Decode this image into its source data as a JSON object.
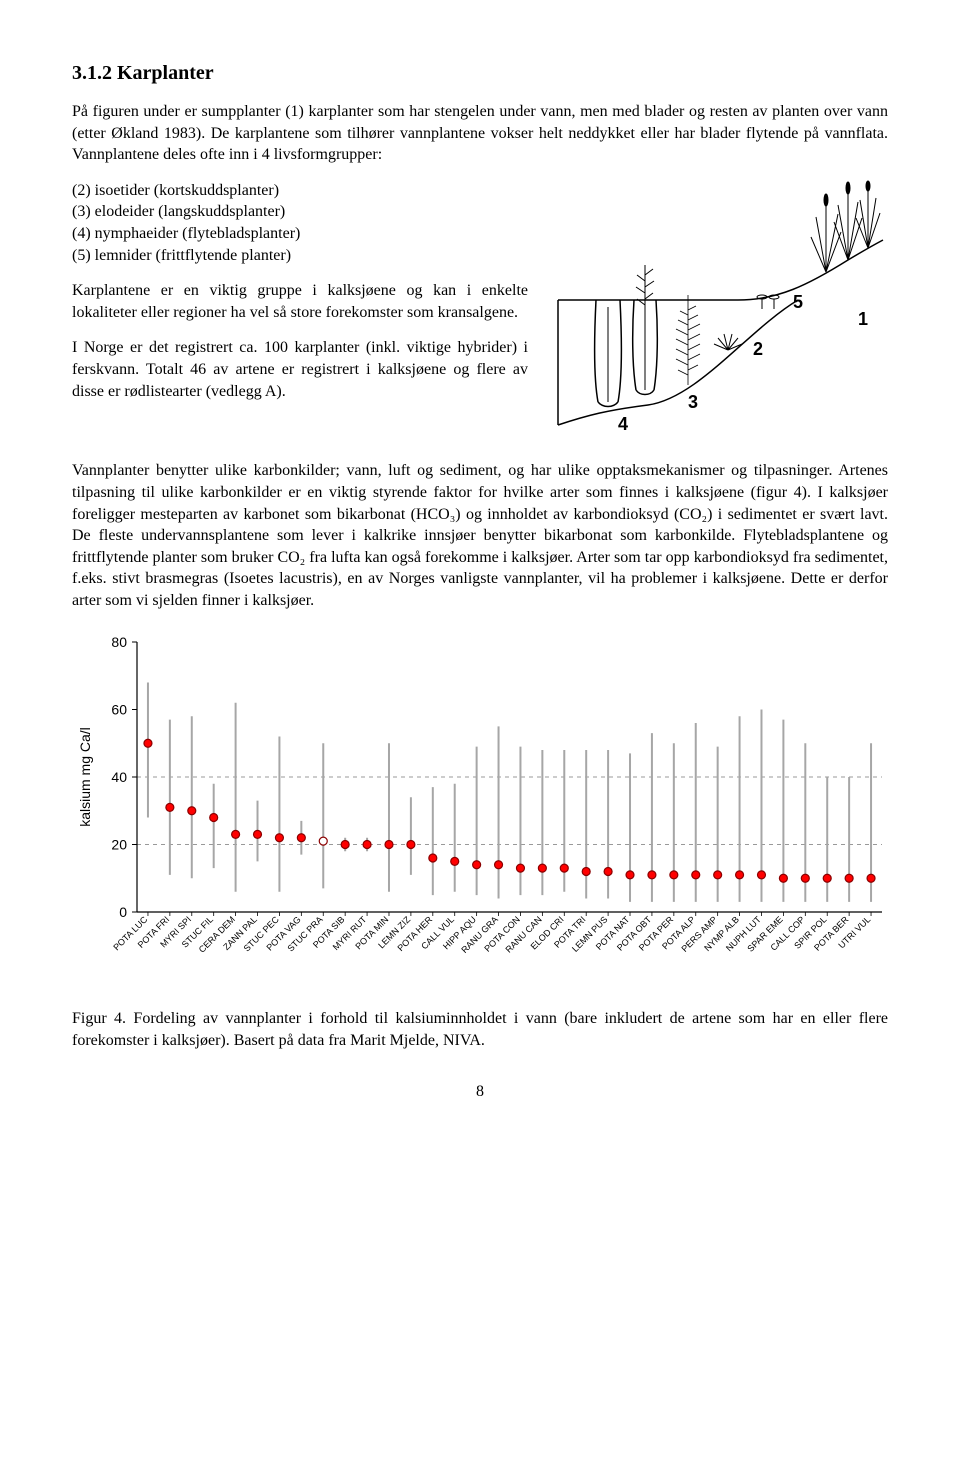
{
  "heading": "3.1.2 Karplanter",
  "para1_a": "På figuren under er sumpplanter (1) karplanter som har stengelen under vann, men med blader og resten av planten over vann (etter Økland 1983). De karplantene som tilhører vannplantene vokser helt neddykket eller har blader flytende på vannflata. Vannplantene deles ofte inn i 4 livsformgrupper:",
  "list": [
    "(2) isoetider (kortskuddsplanter)",
    "(3) elodeider (langskuddsplanter)",
    "(4) nymphaeider (flytebladsplanter)",
    "(5) lemnider (frittflytende planter)"
  ],
  "para2": "Karplantene er en viktig gruppe i kalksjøene og kan i enkelte lokaliteter eller regioner ha vel så store forekomster som kransalgene.",
  "para3": "I Norge er det registrert ca. 100 karplanter (inkl. viktige hybrider) i ferskvann. Totalt 46 av artene er registrert i kalksjøene og flere av disse er rødlistearter (vedlegg A).",
  "para4": "Vannplanter benytter ulike karbonkilder; vann, luft og sediment, og har ulike opptaksmekanismer og tilpasninger. Artenes tilpasning til ulike karbonkilder er en viktig styrende faktor for hvilke arter som finnes i kalksjøene (figur 4). I kalksjøer foreligger mesteparten av karbonet som bikarbonat (HCO₃) og innholdet av karbondioksyd (CO₂) i sedimentet er svært lavt. De fleste undervannsplantene som lever i kalkrike innsjøer benytter bikarbonat som karbonkilde. Flytebladsplantene og frittflytende planter som bruker CO₂ fra lufta kan også forekomme i kalksjøer. Arter som tar opp karbondioksyd fra sedimentet, f.eks. stivt brasmegras (Isoetes lacustris), en av Norges vanligste vannplanter, vil ha problemer i kalksjøene. Dette er derfor arter som vi sjelden finner i kalksjøer.",
  "diagram_labels": [
    "1",
    "2",
    "3",
    "4",
    "5"
  ],
  "chart": {
    "ylabel": "kalsium mg Ca/l",
    "ylim": [
      0,
      80
    ],
    "ytick_step": 20,
    "dashlines": [
      20,
      40
    ],
    "background_color": "#ffffff",
    "axis_color": "#000000",
    "range_color": "#a6a6a6",
    "range_width": 2,
    "dot_color": "#ff0000",
    "dot_stroke": "#8b0000",
    "dot_radius": 4,
    "dash_color": "#999999",
    "label_fontsize": 9,
    "ylabel_fontsize": 14,
    "ytick_fontsize": 14,
    "species": [
      {
        "label": "POTA LUC",
        "min": 28,
        "max": 68,
        "mean": 50
      },
      {
        "label": "POTA FRI",
        "min": 11,
        "max": 57,
        "mean": 31
      },
      {
        "label": "MYRI SPI",
        "min": 10,
        "max": 58,
        "mean": 30
      },
      {
        "label": "STUC FIL",
        "min": 13,
        "max": 38,
        "mean": 28
      },
      {
        "label": "CERA DEM",
        "min": 6,
        "max": 62,
        "mean": 23
      },
      {
        "label": "ZANN PAL",
        "min": 15,
        "max": 33,
        "mean": 23
      },
      {
        "label": "STUC PEC",
        "min": 6,
        "max": 52,
        "mean": 22
      },
      {
        "label": "POTA VAG",
        "min": 17,
        "max": 27,
        "mean": 22
      },
      {
        "label": "STUC PRA",
        "min": 7,
        "max": 50,
        "mean": 21,
        "open": true
      },
      {
        "label": "POTA SIB",
        "min": 18,
        "max": 22,
        "mean": 20
      },
      {
        "label": "MYRI RUT",
        "min": 18,
        "max": 22,
        "mean": 20
      },
      {
        "label": "POTA MIN",
        "min": 6,
        "max": 50,
        "mean": 20
      },
      {
        "label": "LEMN ZIZ",
        "min": 11,
        "max": 34,
        "mean": 20
      },
      {
        "label": "POTA HER",
        "min": 5,
        "max": 37,
        "mean": 16
      },
      {
        "label": "CALL VUL",
        "min": 6,
        "max": 38,
        "mean": 15
      },
      {
        "label": "HIPP AQU",
        "min": 5,
        "max": 49,
        "mean": 14
      },
      {
        "label": "RANU GRA",
        "min": 4,
        "max": 55,
        "mean": 14
      },
      {
        "label": "POTA CON",
        "min": 5,
        "max": 49,
        "mean": 13
      },
      {
        "label": "RANU CAN",
        "min": 5,
        "max": 48,
        "mean": 13
      },
      {
        "label": "ELOD CRI",
        "min": 6,
        "max": 48,
        "mean": 13
      },
      {
        "label": "POTA TRI",
        "min": 4,
        "max": 48,
        "mean": 12
      },
      {
        "label": "LEMN PUS",
        "min": 4,
        "max": 48,
        "mean": 12
      },
      {
        "label": "POTA NAT",
        "min": 3,
        "max": 47,
        "mean": 11
      },
      {
        "label": "POTA OBT",
        "min": 3,
        "max": 53,
        "mean": 11
      },
      {
        "label": "POTA PER",
        "min": 3,
        "max": 50,
        "mean": 11
      },
      {
        "label": "POTA ALP",
        "min": 3,
        "max": 56,
        "mean": 11
      },
      {
        "label": "PERS AMP",
        "min": 3,
        "max": 49,
        "mean": 11
      },
      {
        "label": "NYMP ALB",
        "min": 3,
        "max": 58,
        "mean": 11
      },
      {
        "label": "NUPH LUT",
        "min": 3,
        "max": 60,
        "mean": 11
      },
      {
        "label": "SPAR EME",
        "min": 3,
        "max": 57,
        "mean": 10
      },
      {
        "label": "CALL COP",
        "min": 3,
        "max": 50,
        "mean": 10
      },
      {
        "label": "SPIR POL",
        "min": 3,
        "max": 40,
        "mean": 10
      },
      {
        "label": "POTA BER",
        "min": 3,
        "max": 40,
        "mean": 10
      },
      {
        "label": "UTRI VUL",
        "min": 3,
        "max": 50,
        "mean": 10
      }
    ]
  },
  "figcaption": "Figur 4. Fordeling av vannplanter i forhold til kalsiuminnholdet i vann (bare inkludert de artene som har en eller flere forekomster i kalksjøer). Basert på data fra Marit Mjelde, NIVA.",
  "page_number": "8"
}
